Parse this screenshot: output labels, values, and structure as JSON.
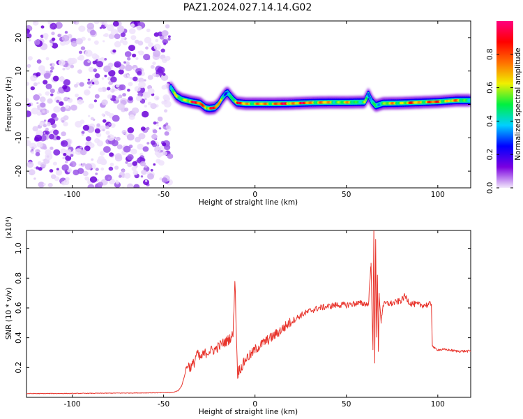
{
  "title": "PAZ1.2024.027.14.14.G02",
  "colors": {
    "snr_line": "#e8342c",
    "frame": "#000000"
  },
  "chart_data": [
    {
      "type": "heatmap",
      "xlabel": "Height of straight line (km)",
      "ylabel": "Frequency (Hz)",
      "xlim": [
        -125,
        118
      ],
      "ylim": [
        -25,
        25
      ],
      "x_ticks": [
        -100,
        -50,
        0,
        50,
        100
      ],
      "y_ticks": [
        -20,
        -10,
        0,
        10,
        20
      ],
      "colorbar": {
        "label": "Normalized spectral amplitude",
        "range": [
          0,
          1
        ],
        "ticks": [
          0.0,
          0.2,
          0.4,
          0.6,
          0.8
        ],
        "colormap": [
          "#f2e8fb",
          "#7b00e0",
          "#0000ff",
          "#00d0ff",
          "#00f040",
          "#f0f000",
          "#ff7000",
          "#ff0000",
          "#ff0080"
        ]
      },
      "noise_region_x": [
        -125,
        -46
      ],
      "ridge": {
        "x": [
          -46,
          -43,
          -40,
          -35,
          -30,
          -27,
          -25,
          -22,
          -20,
          -18,
          -16,
          -15,
          -12,
          -10,
          -5,
          0,
          10,
          20,
          30,
          40,
          50,
          60,
          62,
          64,
          66,
          70,
          80,
          90,
          100,
          110,
          118
        ],
        "freq": [
          5,
          2.5,
          1.5,
          0.8,
          0.3,
          -1.0,
          -1.2,
          -1.0,
          0.0,
          1.8,
          3.2,
          3.5,
          1.5,
          0.5,
          0.2,
          0.2,
          0.2,
          0.3,
          0.5,
          0.6,
          0.6,
          0.7,
          3.0,
          0.8,
          -0.4,
          0.3,
          0.4,
          0.6,
          0.8,
          1.2,
          1.2
        ],
        "amp": [
          0.45,
          0.6,
          0.7,
          0.85,
          0.9,
          0.95,
          0.95,
          0.9,
          0.75,
          0.55,
          0.4,
          0.45,
          0.6,
          0.8,
          0.9,
          0.7,
          0.85,
          0.9,
          0.85,
          0.7,
          0.65,
          0.6,
          0.3,
          0.45,
          0.55,
          0.6,
          0.75,
          0.8,
          0.85,
          0.7,
          0.6
        ]
      }
    },
    {
      "type": "line",
      "xlabel": "Height of straight line (km)",
      "ylabel": "SNR (10 * v/v)",
      "yscale_label": "(x10⁴)",
      "xlim": [
        -125,
        118
      ],
      "ylim": [
        0,
        11200
      ],
      "x_ticks": [
        -100,
        -50,
        0,
        50,
        100
      ],
      "y_ticks": [
        2000,
        4000,
        6000,
        8000,
        10000
      ],
      "y_tick_labels": [
        "0.2",
        "0.4",
        "0.6",
        "0.8",
        "1.0"
      ],
      "series": [
        {
          "x": [
            -125,
            -100,
            -80,
            -60,
            -45,
            -42,
            -40,
            -38,
            -37,
            -35,
            -33,
            -32,
            -30,
            -28,
            -25,
            -22,
            -20,
            -18,
            -15,
            -12,
            -11,
            -10,
            -9.5,
            -9,
            -7,
            -5,
            -2,
            0,
            5,
            10,
            15,
            20,
            25,
            30,
            35,
            40,
            45,
            50,
            55,
            60,
            62,
            63.5,
            64.5,
            65,
            65.5,
            66,
            66.5,
            67,
            67.5,
            68,
            69,
            70,
            72,
            75,
            80,
            82,
            85,
            90,
            95,
            96.5,
            97,
            98,
            100,
            105,
            110,
            118
          ],
          "y": [
            250,
            260,
            280,
            300,
            320,
            450,
            800,
            1700,
            2200,
            2000,
            2400,
            3000,
            2600,
            2900,
            3100,
            3200,
            3400,
            3600,
            3800,
            4200,
            8000,
            3400,
            1500,
            1800,
            2100,
            2600,
            2900,
            3200,
            3700,
            4100,
            4600,
            5100,
            5500,
            5800,
            6000,
            6100,
            6200,
            6200,
            6300,
            6300,
            6200,
            9000,
            3200,
            11200,
            2300,
            10600,
            4200,
            8200,
            3100,
            6800,
            5100,
            6200,
            6300,
            6300,
            6500,
            6800,
            6300,
            6200,
            6200,
            6300,
            3500,
            3300,
            3200,
            3200,
            3100,
            3100
          ]
        }
      ]
    }
  ]
}
